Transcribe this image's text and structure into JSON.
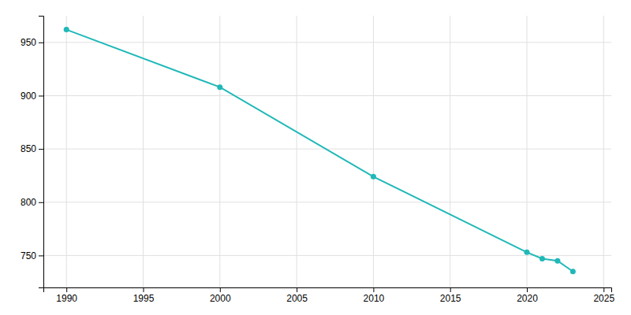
{
  "chart_data": {
    "type": "line",
    "x": [
      1990,
      2000,
      2010,
      2020,
      2021,
      2022,
      2023
    ],
    "values": [
      962,
      908,
      824,
      753,
      747,
      745,
      735
    ],
    "color": "#21b8b8",
    "marker": "circle",
    "xlim": [
      1988.5,
      2025.5
    ],
    "ylim": [
      720,
      975
    ],
    "xticks": [
      1990,
      1995,
      2000,
      2005,
      2010,
      2015,
      2020,
      2025
    ],
    "yticks": [
      750,
      800,
      850,
      900,
      950
    ],
    "grid": true
  }
}
